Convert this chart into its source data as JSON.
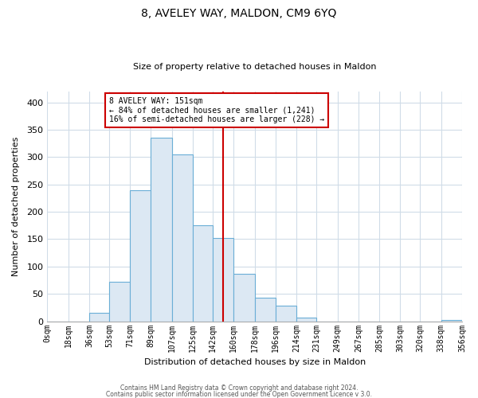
{
  "title": "8, AVELEY WAY, MALDON, CM9 6YQ",
  "subtitle": "Size of property relative to detached houses in Maldon",
  "xlabel": "Distribution of detached houses by size in Maldon",
  "ylabel": "Number of detached properties",
  "bar_color": "#dce8f3",
  "bar_edge_color": "#6aaed6",
  "reference_line_x": 151,
  "reference_line_color": "#cc0000",
  "annotation_title": "8 AVELEY WAY: 151sqm",
  "annotation_line1": "← 84% of detached houses are smaller (1,241)",
  "annotation_line2": "16% of semi-detached houses are larger (228) →",
  "annotation_box_facecolor": "#ffffff",
  "annotation_box_edge": "#cc0000",
  "bins": [
    0,
    18,
    36,
    53,
    71,
    89,
    107,
    125,
    142,
    160,
    178,
    196,
    214,
    231,
    249,
    267,
    285,
    303,
    320,
    338,
    356
  ],
  "bin_labels": [
    "0sqm",
    "18sqm",
    "36sqm",
    "53sqm",
    "71sqm",
    "89sqm",
    "107sqm",
    "125sqm",
    "142sqm",
    "160sqm",
    "178sqm",
    "196sqm",
    "214sqm",
    "231sqm",
    "249sqm",
    "267sqm",
    "285sqm",
    "303sqm",
    "320sqm",
    "338sqm",
    "356sqm"
  ],
  "bar_heights": [
    0,
    0,
    15,
    72,
    240,
    335,
    305,
    175,
    152,
    87,
    43,
    28,
    7,
    0,
    0,
    0,
    0,
    0,
    0,
    2
  ],
  "yticks": [
    0,
    50,
    100,
    150,
    200,
    250,
    300,
    350,
    400
  ],
  "ylim": [
    0,
    420
  ],
  "footer1": "Contains HM Land Registry data © Crown copyright and database right 2024.",
  "footer2": "Contains public sector information licensed under the Open Government Licence v 3.0.",
  "background_color": "#ffffff",
  "plot_background": "#ffffff",
  "grid_color": "#d0dce8",
  "title_fontsize": 10,
  "subtitle_fontsize": 8,
  "ylabel_fontsize": 8,
  "xlabel_fontsize": 8,
  "tick_fontsize": 7,
  "footer_fontsize": 5.5
}
